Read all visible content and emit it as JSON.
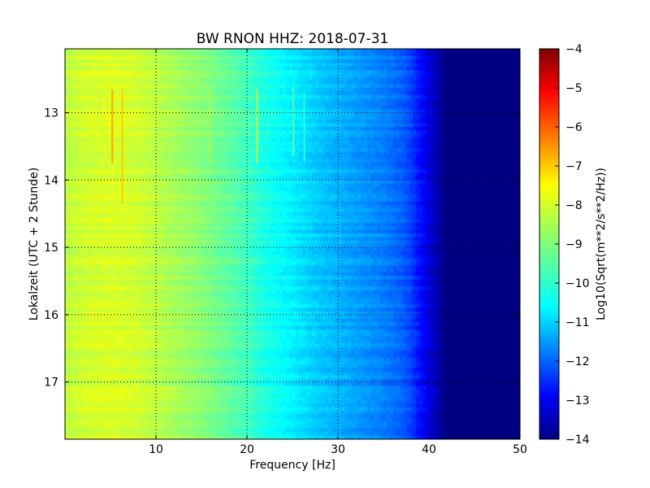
{
  "chart_data": {
    "type": "heatmap",
    "title": "BW RNON HHZ: 2018-07-31",
    "xlabel": "Frequency [Hz]",
    "ylabel": "Lokalzeit (UTC + 2 Stunde)",
    "xlim": [
      0,
      50
    ],
    "ylim": [
      12.05,
      17.85
    ],
    "y_inverted": true,
    "grid": true,
    "x_ticks": [
      10,
      20,
      30,
      40,
      50
    ],
    "y_ticks": [
      13,
      14,
      15,
      16,
      17
    ],
    "colormap": "jet",
    "colorbar": {
      "label": "Log10(Sqrt(m**2/s**2/Hz))",
      "range": [
        -14,
        -4
      ],
      "ticks": [
        -4,
        -5,
        -6,
        -7,
        -8,
        -9,
        -10,
        -11,
        -12,
        -13,
        -14
      ]
    },
    "spectrum_profile": {
      "frequency_hz": [
        0,
        2,
        5,
        8,
        10,
        12,
        15,
        18,
        20,
        22,
        25,
        28,
        30,
        33,
        35,
        37,
        38,
        39,
        40,
        41,
        42,
        50
      ],
      "log10_amplitude": [
        -8.4,
        -8.2,
        -8.1,
        -8.2,
        -8.4,
        -8.6,
        -8.9,
        -9.3,
        -9.6,
        -10.0,
        -10.4,
        -10.8,
        -11.0,
        -11.3,
        -11.5,
        -11.8,
        -12.1,
        -12.6,
        -13.0,
        -13.6,
        -14.0,
        -14.0
      ]
    },
    "narrow_features": [
      {
        "frequency_hz": 5.2,
        "time_start": 12.65,
        "time_end": 13.75,
        "log10_amplitude": -7.0
      },
      {
        "frequency_hz": 6.3,
        "time_start": 12.65,
        "time_end": 14.35,
        "log10_amplitude": -7.3
      },
      {
        "frequency_hz": 15.9,
        "time_start": 12.65,
        "time_end": 13.75,
        "log10_amplitude": -8.6
      },
      {
        "frequency_hz": 21.1,
        "time_start": 12.65,
        "time_end": 13.75,
        "log10_amplitude": -8.6
      },
      {
        "frequency_hz": 25.1,
        "time_start": 12.6,
        "time_end": 13.65,
        "log10_amplitude": -9.6
      },
      {
        "frequency_hz": 26.3,
        "time_start": 12.7,
        "time_end": 13.75,
        "log10_amplitude": -10.0
      }
    ]
  }
}
